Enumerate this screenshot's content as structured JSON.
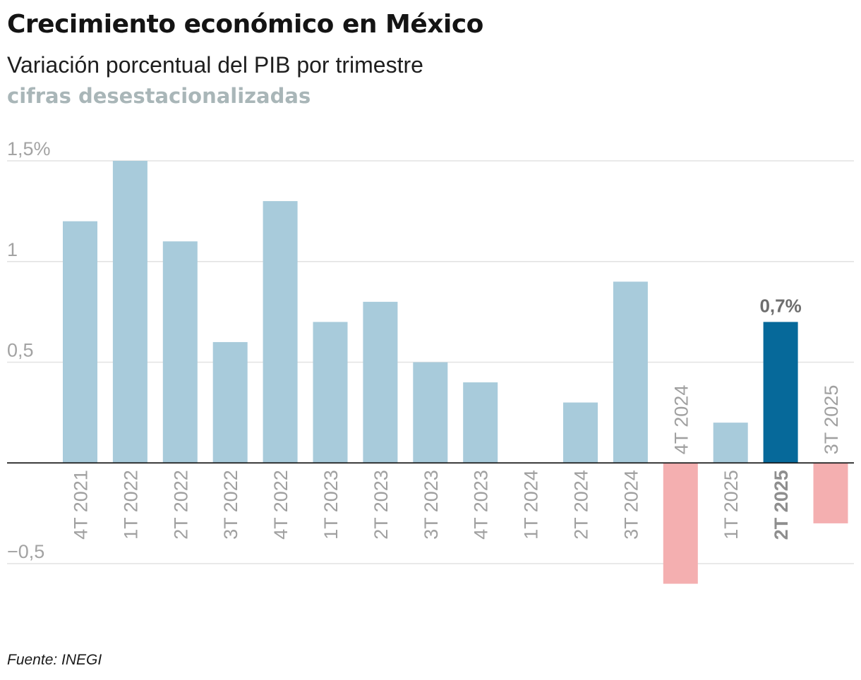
{
  "header": {
    "title": "Crecimiento económico en México",
    "subtitle": "Variación porcentual del PIB por trimestre",
    "note": "cifras desestacionalizadas"
  },
  "footer": {
    "source": "Fuente: INEGI"
  },
  "colors": {
    "positive": "#a8cbdb",
    "negative": "#f4afb0",
    "highlight": "#06699a",
    "gridline": "#e2e2e2",
    "zero_line": "#1a1a1a"
  },
  "chart_data": {
    "type": "bar",
    "title": "Crecimiento económico en México",
    "subtitle": "Variación porcentual del PIB por trimestre",
    "xlabel": "",
    "ylabel": "",
    "ylim": [
      -0.5,
      1.5
    ],
    "yticks": [
      {
        "value": 1.5,
        "label": "1,5%"
      },
      {
        "value": 1,
        "label": "1"
      },
      {
        "value": 0.5,
        "label": "0,5"
      },
      {
        "value": -0.5,
        "label": "−0,5"
      }
    ],
    "grid": true,
    "legend": "none",
    "categories": [
      "4T 2021",
      "1T 2022",
      "2T 2022",
      "3T 2022",
      "4T 2022",
      "1T 2023",
      "2T 2023",
      "3T 2023",
      "4T 2023",
      "1T 2024",
      "2T 2024",
      "3T 2024",
      "4T 2024",
      "1T 2025",
      "2T 2025",
      "3T 2025"
    ],
    "values": [
      1.2,
      1.5,
      1.1,
      0.6,
      1.3,
      0.7,
      0.8,
      0.5,
      0.4,
      0.0,
      0.3,
      0.9,
      -0.6,
      0.2,
      0.7,
      -0.3
    ],
    "highlight": "2T 2025",
    "annotations": [
      {
        "category": "2T 2025",
        "label": "0,7%"
      }
    ]
  }
}
